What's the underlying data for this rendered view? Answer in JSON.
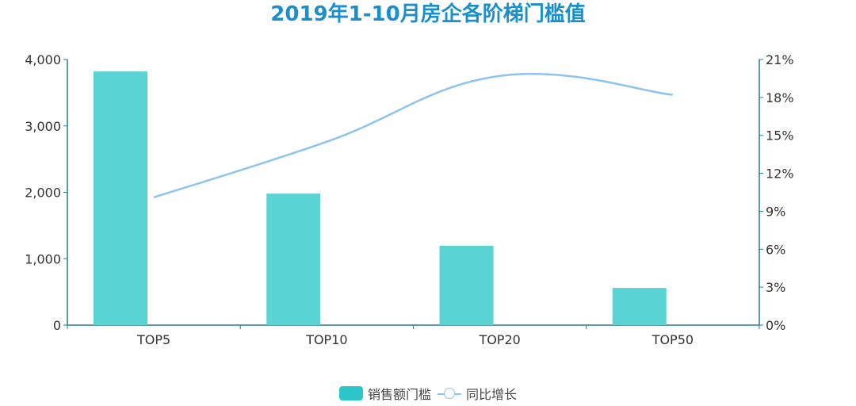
{
  "chart_data": {
    "type": "bar+line",
    "title": "2019年1-10月房企各阶梯门槛值",
    "categories": [
      "TOP5",
      "TOP10",
      "TOP20",
      "TOP50"
    ],
    "series": [
      {
        "name": "销售额门槛",
        "type": "bar",
        "axis": "left",
        "values": [
          3820,
          1980,
          1195,
          560
        ],
        "color": "#5ad3d4"
      },
      {
        "name": "同比增长",
        "type": "line",
        "axis": "right",
        "smooth": true,
        "values": [
          10.1,
          14.5,
          19.7,
          18.2
        ],
        "color": "#8ec4ec"
      }
    ],
    "left_axis": {
      "ylim": [
        0,
        4000
      ],
      "ticks": [
        "0",
        "1,000",
        "2,000",
        "3,000",
        "4,000"
      ]
    },
    "right_axis": {
      "ylim": [
        0,
        21
      ],
      "ticks": [
        "0%",
        "3%",
        "6%",
        "9%",
        "12%",
        "15%",
        "18%",
        "21%"
      ]
    },
    "grid": false,
    "legend_position": "bottom",
    "axis_color": "#2b7a8a"
  }
}
